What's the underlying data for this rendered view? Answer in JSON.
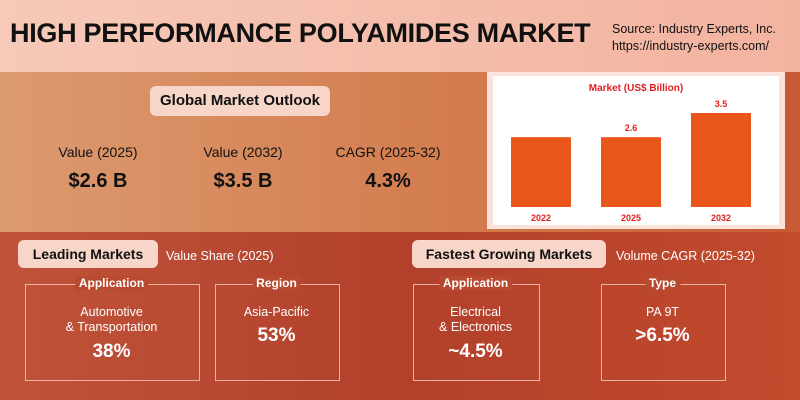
{
  "header": {
    "title": "HIGH PERFORMANCE POLYAMIDES MARKET",
    "source": "Source: Industry Experts, Inc.",
    "url": "https://industry-experts.com/"
  },
  "outlook": {
    "title": "Global Market Outlook",
    "metrics": [
      {
        "label": "Value (2025)",
        "value": "$2.6 B"
      },
      {
        "label": "Value (2032)",
        "value": "$3.5 B"
      },
      {
        "label": "CAGR (2025-32)",
        "value": "4.3%"
      }
    ]
  },
  "chart_data": {
    "type": "bar",
    "title": "Market (US$ Billion)",
    "categories": [
      "2022",
      "2025",
      "2032"
    ],
    "values": [
      2.6,
      2.6,
      3.5
    ],
    "value_labels": [
      null,
      "2.6",
      "3.5"
    ],
    "color": "#e8561a"
  },
  "leading": {
    "title": "Leading Markets",
    "subtitle": "Value Share (2025)",
    "cards": [
      {
        "heading": "Application",
        "lines": [
          "Automotive",
          "& Transportation"
        ],
        "value": "38%"
      },
      {
        "heading": "Region",
        "lines": [
          "Asia-Pacific"
        ],
        "value": "53%"
      }
    ]
  },
  "fastest": {
    "title": "Fastest Growing Markets",
    "subtitle": "Volume CAGR (2025-32)",
    "cards": [
      {
        "heading": "Application",
        "lines": [
          "Electrical",
          "& Electronics"
        ],
        "value": "~4.5%"
      },
      {
        "heading": "Type",
        "lines": [
          "PA 9T"
        ],
        "value": ">6.5%"
      }
    ]
  }
}
